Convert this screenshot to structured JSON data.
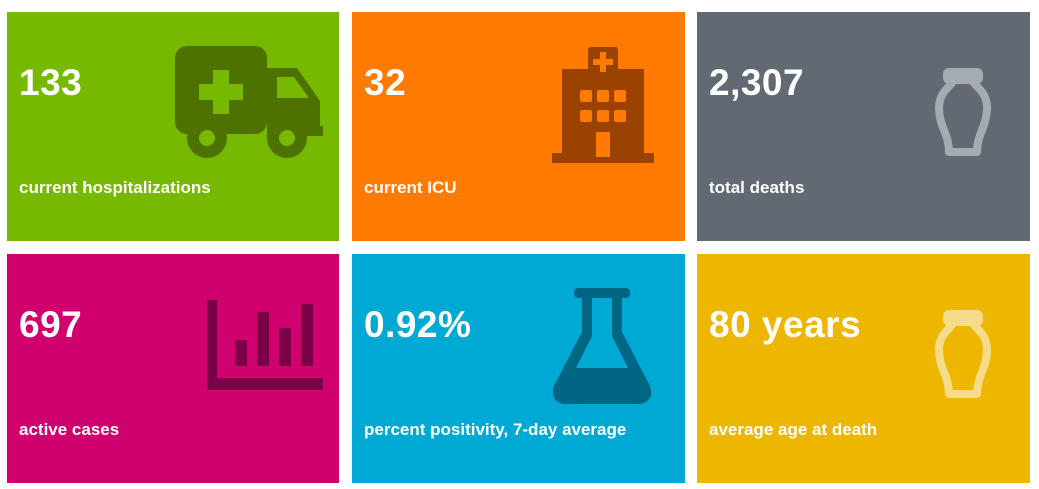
{
  "stats": [
    {
      "value": "133",
      "label": "current hospitalizations",
      "color": "#76b900",
      "icon": "ambulance-icon",
      "icon_color": "#4d7200"
    },
    {
      "value": "32",
      "label": "current ICU",
      "color": "#ff7a00",
      "icon": "hospital-icon",
      "icon_color": "#9a4300"
    },
    {
      "value": "2,307",
      "label": "total deaths",
      "color": "#616a73",
      "icon": "urn-icon",
      "icon_color": "#a6abb0"
    },
    {
      "value": "697",
      "label": "active cases",
      "color": "#d1006f",
      "icon": "bar-chart-icon",
      "icon_color": "#7a0048"
    },
    {
      "value": "0.92%",
      "label": "percent positivity, 7-day average",
      "color": "#00a9d4",
      "icon": "flask-icon",
      "icon_color": "#006684"
    },
    {
      "value": "80 years",
      "label": "average age at death",
      "color": "#edb600",
      "icon": "urn-icon",
      "icon_color": "#f6dc8a"
    }
  ]
}
